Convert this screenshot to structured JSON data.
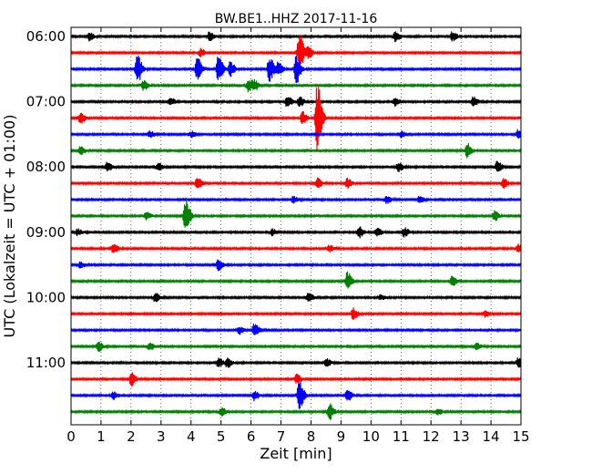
{
  "chart_data": {
    "type": "line",
    "title": "BW.BE1..HHZ 2017-11-16",
    "xlabel": "Zeit  [min]",
    "ylabel": "UTC (Lokalzeit = UTC + 01:00)",
    "xlim": [
      0,
      15
    ],
    "x_ticks": [
      0,
      1,
      2,
      3,
      4,
      5,
      6,
      7,
      8,
      9,
      10,
      11,
      12,
      13,
      14,
      15
    ],
    "y_tick_labels": [
      "06:00",
      "07:00",
      "08:00",
      "09:00",
      "10:00",
      "11:00"
    ],
    "y_tick_rows": [
      0,
      4,
      8,
      12,
      16,
      20
    ],
    "row_minutes": 15,
    "grid": "dotted vertical at each minute",
    "color_cycle": [
      "#000000",
      "#ff0000",
      "#0000ff",
      "#008000"
    ],
    "series": [
      {
        "start": "06:00",
        "events": [
          [
            0.6,
            0.25
          ],
          [
            4.6,
            0.3
          ],
          [
            10.8,
            0.3
          ],
          [
            12.7,
            0.3
          ]
        ]
      },
      {
        "start": "06:15",
        "events": [
          [
            4.3,
            0.25
          ],
          [
            7.6,
            1.25
          ],
          [
            7.9,
            0.35
          ]
        ]
      },
      {
        "start": "06:30",
        "events": [
          [
            2.2,
            0.9
          ],
          [
            4.2,
            0.7
          ],
          [
            4.9,
            0.8
          ],
          [
            5.3,
            0.45
          ],
          [
            6.6,
            0.8
          ],
          [
            6.9,
            0.4
          ],
          [
            7.5,
            0.9
          ]
        ]
      },
      {
        "start": "06:45",
        "events": [
          [
            2.4,
            0.35
          ],
          [
            5.9,
            0.4
          ],
          [
            6.1,
            0.3
          ]
        ]
      },
      {
        "start": "07:00",
        "events": [
          [
            3.3,
            0.25
          ],
          [
            7.2,
            0.35
          ],
          [
            7.6,
            0.3
          ],
          [
            10.8,
            0.25
          ],
          [
            13.4,
            0.3
          ]
        ]
      },
      {
        "start": "07:15",
        "events": [
          [
            0.3,
            0.35
          ],
          [
            7.7,
            0.4
          ],
          [
            8.2,
            2.2
          ]
        ]
      },
      {
        "start": "07:30",
        "events": [
          [
            2.6,
            0.25
          ],
          [
            4.0,
            0.2
          ],
          [
            11.0,
            0.2
          ],
          [
            14.9,
            0.3
          ]
        ]
      },
      {
        "start": "07:45",
        "events": [
          [
            0.3,
            0.25
          ],
          [
            13.2,
            0.45
          ]
        ]
      },
      {
        "start": "08:00",
        "events": [
          [
            1.2,
            0.3
          ],
          [
            2.9,
            0.25
          ],
          [
            10.9,
            0.3
          ],
          [
            14.2,
            0.35
          ]
        ]
      },
      {
        "start": "08:15",
        "events": [
          [
            4.2,
            0.35
          ],
          [
            8.2,
            0.3
          ],
          [
            9.2,
            0.3
          ],
          [
            14.4,
            0.3
          ]
        ]
      },
      {
        "start": "08:30",
        "events": [
          [
            7.4,
            0.2
          ],
          [
            10.5,
            0.25
          ],
          [
            11.6,
            0.2
          ]
        ]
      },
      {
        "start": "08:45",
        "events": [
          [
            2.5,
            0.25
          ],
          [
            3.8,
            1.1
          ],
          [
            14.1,
            0.3
          ]
        ]
      },
      {
        "start": "09:00",
        "events": [
          [
            0.2,
            0.2
          ],
          [
            6.7,
            0.2
          ],
          [
            9.6,
            0.35
          ],
          [
            10.2,
            0.25
          ],
          [
            11.1,
            0.3
          ]
        ]
      },
      {
        "start": "09:15",
        "events": [
          [
            1.4,
            0.3
          ],
          [
            8.6,
            0.2
          ],
          [
            14.9,
            0.25
          ]
        ]
      },
      {
        "start": "09:30",
        "events": [
          [
            0.3,
            0.2
          ],
          [
            4.9,
            0.35
          ]
        ]
      },
      {
        "start": "09:45",
        "events": [
          [
            9.2,
            0.55
          ],
          [
            12.7,
            0.3
          ]
        ]
      },
      {
        "start": "10:00",
        "events": [
          [
            2.8,
            0.3
          ],
          [
            7.9,
            0.3
          ],
          [
            10.3,
            0.15
          ]
        ]
      },
      {
        "start": "10:15",
        "events": [
          [
            9.4,
            0.35
          ],
          [
            13.8,
            0.2
          ]
        ]
      },
      {
        "start": "10:30",
        "events": [
          [
            5.6,
            0.25
          ],
          [
            6.1,
            0.4
          ]
        ]
      },
      {
        "start": "10:45",
        "events": [
          [
            0.9,
            0.3
          ],
          [
            2.6,
            0.25
          ],
          [
            13.5,
            0.2
          ]
        ]
      },
      {
        "start": "11:00",
        "events": [
          [
            4.9,
            0.3
          ],
          [
            5.2,
            0.3
          ],
          [
            8.5,
            0.25
          ],
          [
            14.9,
            0.3
          ]
        ]
      },
      {
        "start": "11:15",
        "events": [
          [
            2.0,
            0.45
          ],
          [
            7.5,
            0.3
          ]
        ]
      },
      {
        "start": "11:30",
        "events": [
          [
            1.4,
            0.25
          ],
          [
            6.1,
            0.3
          ],
          [
            7.6,
            0.9
          ],
          [
            9.2,
            0.4
          ]
        ]
      },
      {
        "start": "11:45",
        "events": [
          [
            5.0,
            0.25
          ],
          [
            8.6,
            0.5
          ],
          [
            12.2,
            0.2
          ]
        ]
      }
    ]
  }
}
